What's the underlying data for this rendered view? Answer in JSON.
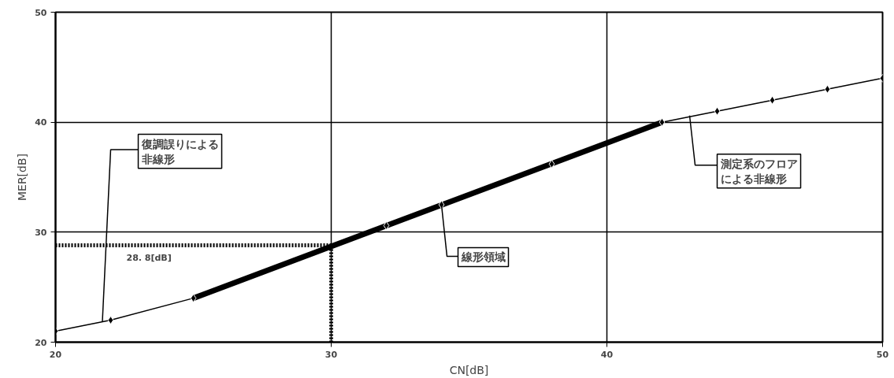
{
  "chart_data": {
    "type": "line",
    "xlabel": "CN[dB]",
    "ylabel": "MER[dB]",
    "xlim": [
      20,
      50
    ],
    "ylim": [
      20,
      50
    ],
    "xticks": [
      20,
      30,
      40,
      50
    ],
    "yticks": [
      20,
      30,
      40,
      50
    ],
    "grid": true,
    "marker": "diamond",
    "line_style": "solid",
    "series": [
      {
        "color": "#000000",
        "x": [
          20,
          22,
          25,
          32,
          34,
          38,
          42,
          44,
          46,
          48,
          50
        ],
        "values": [
          21,
          22,
          24,
          30.6,
          32.5,
          36.2,
          40,
          41,
          42,
          43,
          44
        ]
      },
      {
        "color": "#000000",
        "marker": "none",
        "x": [
          25,
          42
        ],
        "values": [
          24,
          40
        ]
      }
    ],
    "ref_lines": [
      {
        "axis": "y",
        "value": 28.8,
        "label": "28. 8[dB]",
        "line_style": "dotted"
      },
      {
        "axis": "x",
        "value": 30,
        "line_style": "dotted"
      }
    ],
    "annotations": [
      {
        "text": "復調誤りによる非線形",
        "x": 21.7,
        "y": 21.9
      },
      {
        "text": "線形領域",
        "x": 34,
        "y": 32.5
      },
      {
        "text": "測定系のフロアによる非線形",
        "x": 43,
        "y": 40.6
      }
    ]
  }
}
